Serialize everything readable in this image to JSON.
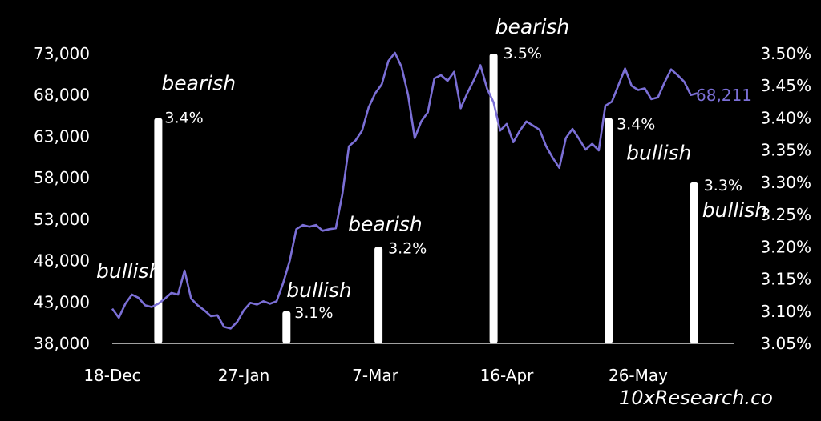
{
  "chart_data": {
    "type": "line",
    "title": "",
    "source": "10xResearch.co",
    "colors": {
      "background": "#000000",
      "line": "#7b6fd6",
      "bars": "#ffffff",
      "text": "#ffffff"
    },
    "x_ticks": [
      "18-Dec",
      "27-Jan",
      "7-Mar",
      "16-Apr",
      "26-May"
    ],
    "y_left": {
      "ticks": [
        "73,000",
        "68,000",
        "63,000",
        "58,000",
        "53,000",
        "48,000",
        "43,000",
        "38,000"
      ],
      "range": [
        38000,
        73000
      ]
    },
    "y_right": {
      "ticks": [
        "3.50%",
        "3.45%",
        "3.40%",
        "3.35%",
        "3.30%",
        "3.25%",
        "3.20%",
        "3.15%",
        "3.10%",
        "3.05%"
      ],
      "range": [
        3.05,
        3.5
      ]
    },
    "last_price_label": "68,211",
    "series": [
      {
        "axis": "left",
        "x": [
          "2023-12-18",
          "2023-12-20",
          "2023-12-22",
          "2023-12-24",
          "2023-12-26",
          "2023-12-28",
          "2023-12-30",
          "2024-01-01",
          "2024-01-03",
          "2024-01-05",
          "2024-01-07",
          "2024-01-09",
          "2024-01-11",
          "2024-01-13",
          "2024-01-15",
          "2024-01-17",
          "2024-01-19",
          "2024-01-21",
          "2024-01-23",
          "2024-01-25",
          "2024-01-27",
          "2024-01-29",
          "2024-01-31",
          "2024-02-02",
          "2024-02-04",
          "2024-02-06",
          "2024-02-08",
          "2024-02-10",
          "2024-02-12",
          "2024-02-14",
          "2024-02-16",
          "2024-02-18",
          "2024-02-20",
          "2024-02-22",
          "2024-02-24",
          "2024-02-26",
          "2024-02-28",
          "2024-03-01",
          "2024-03-03",
          "2024-03-05",
          "2024-03-07",
          "2024-03-09",
          "2024-03-11",
          "2024-03-13",
          "2024-03-15",
          "2024-03-17",
          "2024-03-19",
          "2024-03-21",
          "2024-03-23",
          "2024-03-25",
          "2024-03-27",
          "2024-03-29",
          "2024-03-31",
          "2024-04-02",
          "2024-04-04",
          "2024-04-06",
          "2024-04-08",
          "2024-04-10",
          "2024-04-12",
          "2024-04-14",
          "2024-04-16",
          "2024-04-18",
          "2024-04-20",
          "2024-04-22",
          "2024-04-24",
          "2024-04-26",
          "2024-04-28",
          "2024-04-30",
          "2024-05-02",
          "2024-05-04",
          "2024-05-06",
          "2024-05-08",
          "2024-05-10",
          "2024-05-12",
          "2024-05-14",
          "2024-05-16",
          "2024-05-18",
          "2024-05-20",
          "2024-05-22",
          "2024-05-24",
          "2024-05-26",
          "2024-05-28",
          "2024-05-30",
          "2024-06-01",
          "2024-06-03",
          "2024-06-05",
          "2024-06-07",
          "2024-06-09",
          "2024-06-11",
          "2024-06-13"
        ],
        "values": [
          42200,
          41100,
          42800,
          43900,
          43500,
          42600,
          42400,
          42800,
          43400,
          44100,
          43900,
          46800,
          43400,
          42600,
          42000,
          41300,
          41400,
          40000,
          39800,
          40600,
          42000,
          42900,
          42700,
          43100,
          42800,
          43100,
          45300,
          48000,
          51800,
          52300,
          52100,
          52300,
          51600,
          51800,
          51900,
          56000,
          61800,
          62500,
          63700,
          66500,
          68200,
          69300,
          72100,
          73100,
          71400,
          68000,
          62800,
          64800,
          65900,
          70000,
          70400,
          69700,
          70800,
          66400,
          68200,
          69800,
          71600,
          68800,
          67100,
          63700,
          64500,
          62300,
          63700,
          64800,
          64300,
          63800,
          61800,
          60400,
          59200,
          62800,
          63900,
          62700,
          61400,
          62100,
          61300,
          66700,
          67200,
          69200,
          71200,
          69100,
          68600,
          68800,
          67500,
          67700,
          69500,
          71100,
          70400,
          69600,
          68000,
          68211
        ]
      }
    ],
    "bars": [
      {
        "x": "2024-01-01",
        "value": 3.4,
        "label": "3.4%",
        "annotation": "bearish"
      },
      {
        "x": "2024-02-09",
        "value": 3.1,
        "label": "3.1%",
        "annotation": "bullish"
      },
      {
        "x": "2024-03-08",
        "value": 3.2,
        "label": "3.2%",
        "annotation": "bearish"
      },
      {
        "x": "2024-04-12",
        "value": 3.5,
        "label": "3.5%",
        "annotation": "bearish"
      },
      {
        "x": "2024-05-17",
        "value": 3.4,
        "label": "3.4%",
        "annotation": "bullish"
      },
      {
        "x": "2024-06-12",
        "value": 3.3,
        "label": "3.3%",
        "annotation": "bullish"
      }
    ],
    "extra_annotations": [
      {
        "x": "2023-12-18",
        "text": "bullish"
      }
    ]
  }
}
